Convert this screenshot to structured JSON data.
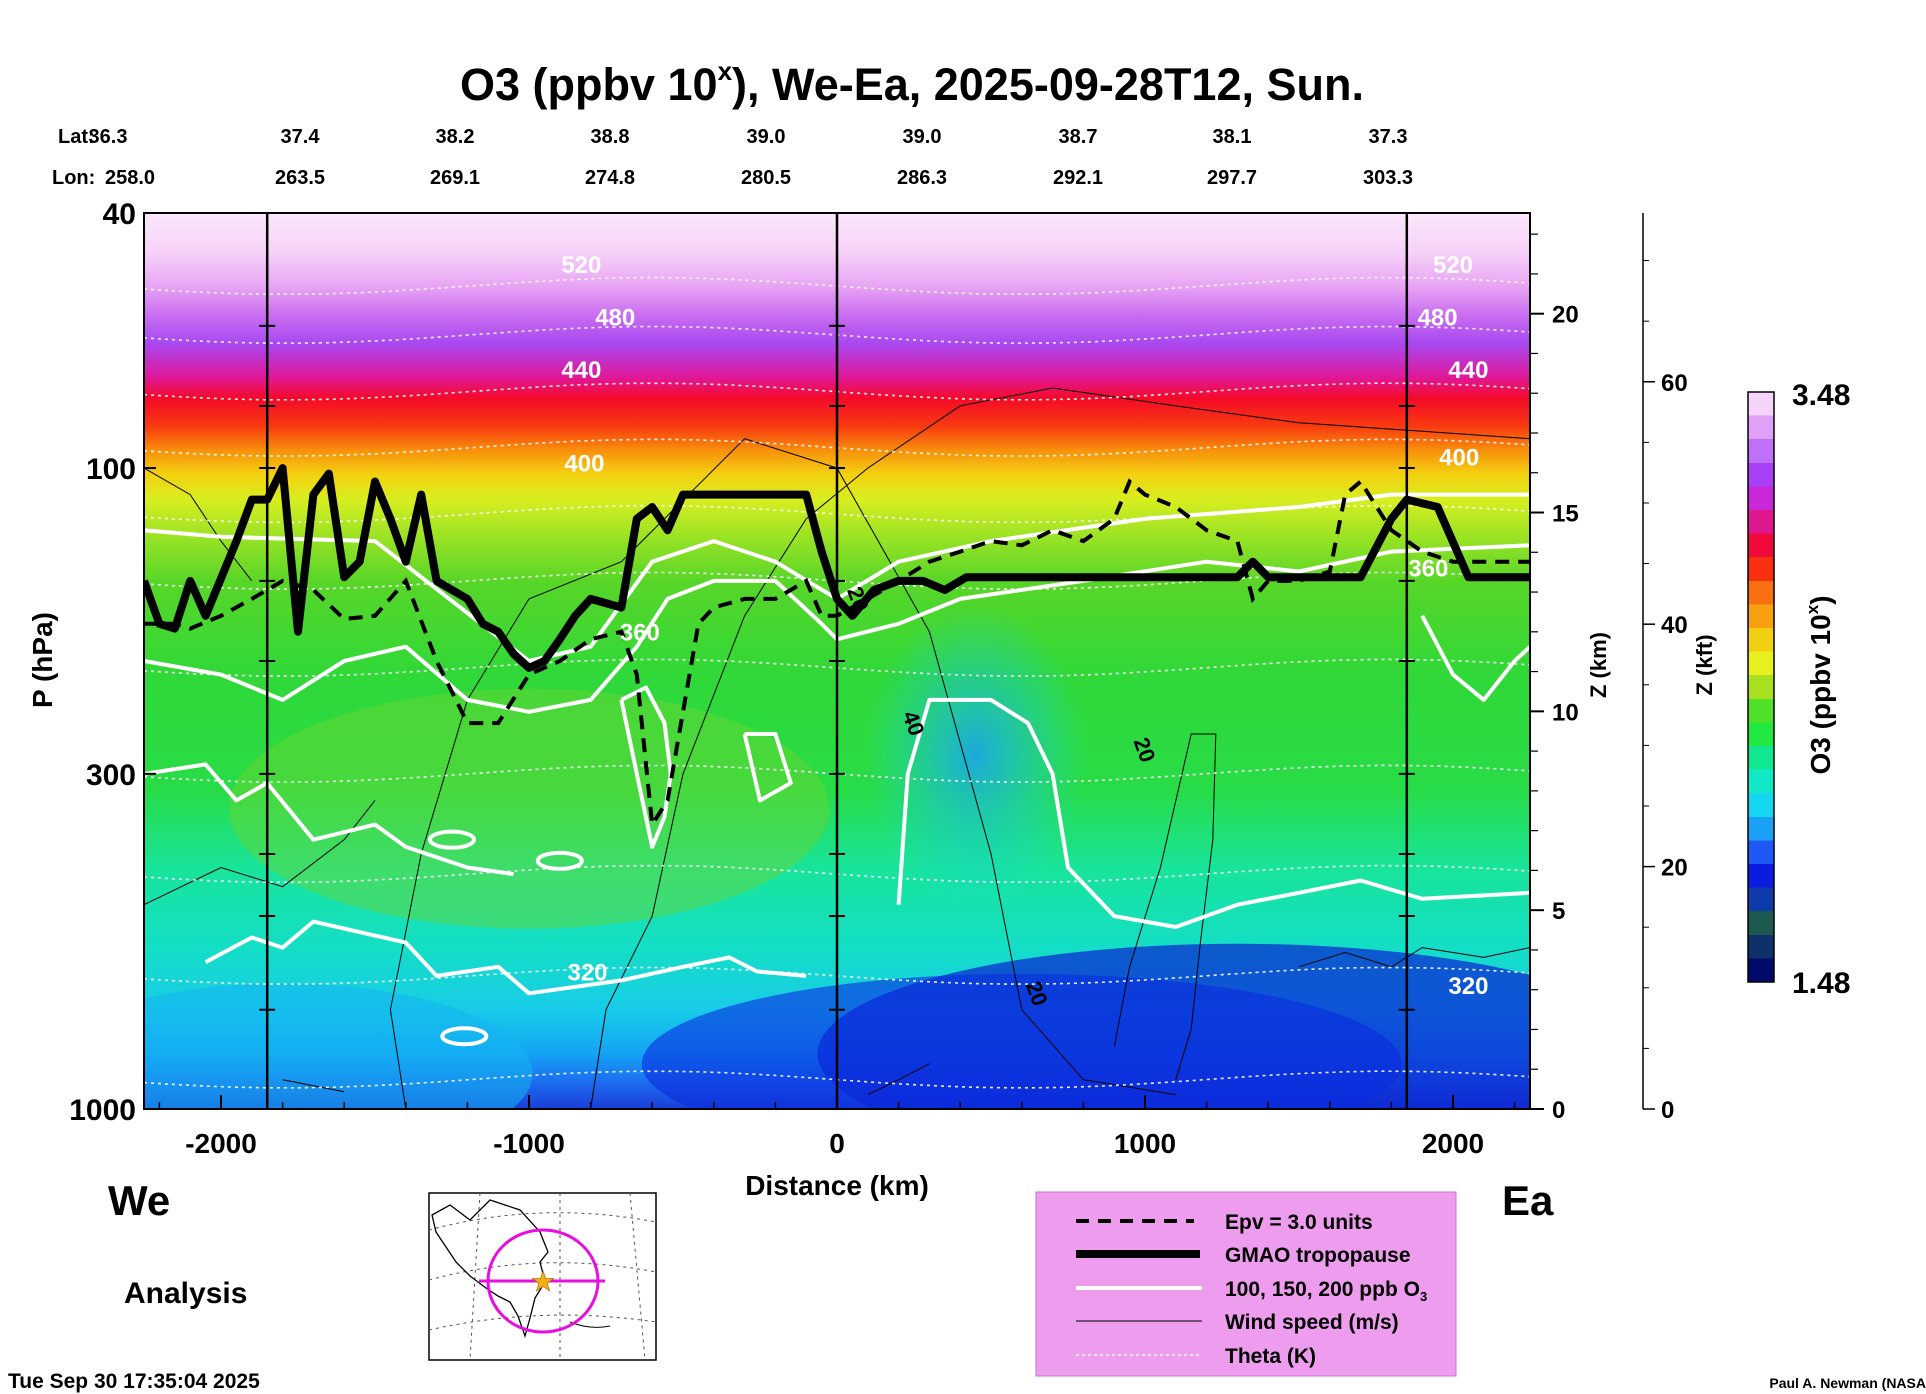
{
  "chart_data": {
    "type": "contour",
    "title": "O3 (ppbv 10",
    "title_sup": "x",
    "title_suffix": "), We-Ea, 2025-09-28T12, Sun.",
    "xlabel": "Distance (km)",
    "ylabel_left": "P (hPa)",
    "ylabel_right_km": "Z (km)",
    "ylabel_right_kft": "Z (kft)",
    "x_ticks": [
      -2000,
      -1000,
      0,
      1000,
      2000
    ],
    "xlim": [
      -2250,
      2250
    ],
    "p_ticks": [
      40,
      100,
      300,
      1000
    ],
    "p_range": [
      1000,
      40
    ],
    "z_km_ticks": [
      0,
      5,
      10,
      15,
      20
    ],
    "z_kft_ticks": [
      0,
      20,
      40,
      60
    ],
    "lat_label": "Lat:",
    "lon_label": "Lon:",
    "lats": [
      "36.3",
      "37.4",
      "38.2",
      "38.8",
      "39.0",
      "39.0",
      "38.7",
      "38.1",
      "37.3"
    ],
    "lons": [
      "258.0",
      "263.5",
      "269.1",
      "274.8",
      "280.5",
      "286.3",
      "292.1",
      "297.7",
      "303.3"
    ],
    "vertical_markers_km": [
      -1850,
      0,
      1850
    ],
    "theta_labels": [
      {
        "text": "520",
        "x": -830,
        "p": 48
      },
      {
        "text": "480",
        "x": -720,
        "p": 58
      },
      {
        "text": "440",
        "x": -830,
        "p": 70
      },
      {
        "text": "400",
        "x": -820,
        "p": 98
      },
      {
        "text": "360",
        "x": -640,
        "p": 180
      },
      {
        "text": "320",
        "x": -810,
        "p": 610
      },
      {
        "text": "520",
        "x": 2000,
        "p": 48
      },
      {
        "text": "480",
        "x": 1950,
        "p": 58
      },
      {
        "text": "440",
        "x": 2050,
        "p": 70
      },
      {
        "text": "400",
        "x": 2020,
        "p": 96
      },
      {
        "text": "360",
        "x": 1920,
        "p": 143
      },
      {
        "text": "320",
        "x": 2050,
        "p": 640
      }
    ],
    "wind_labels": [
      {
        "text": "40",
        "x": 250,
        "p": 250
      },
      {
        "text": "20",
        "x": 1000,
        "p": 275
      },
      {
        "text": "20",
        "x": 650,
        "p": 660
      },
      {
        "text": "20",
        "x": 70,
        "p": 160
      }
    ],
    "tropopause": [
      [
        -2250,
        150
      ],
      [
        -2200,
        175
      ],
      [
        -2150,
        178
      ],
      [
        -2100,
        150
      ],
      [
        -2050,
        170
      ],
      [
        -1950,
        130
      ],
      [
        -1900,
        112
      ],
      [
        -1850,
        112
      ],
      [
        -1800,
        100
      ],
      [
        -1750,
        180
      ],
      [
        -1700,
        110
      ],
      [
        -1650,
        102
      ],
      [
        -1600,
        148
      ],
      [
        -1550,
        140
      ],
      [
        -1500,
        105
      ],
      [
        -1450,
        120
      ],
      [
        -1400,
        140
      ],
      [
        -1350,
        110
      ],
      [
        -1300,
        150
      ],
      [
        -1200,
        160
      ],
      [
        -1150,
        175
      ],
      [
        -1100,
        180
      ],
      [
        -1050,
        195
      ],
      [
        -1000,
        205
      ],
      [
        -950,
        200
      ],
      [
        -900,
        185
      ],
      [
        -850,
        170
      ],
      [
        -800,
        160
      ],
      [
        -700,
        165
      ],
      [
        -650,
        120
      ],
      [
        -600,
        115
      ],
      [
        -550,
        125
      ],
      [
        -500,
        110
      ],
      [
        -300,
        110
      ],
      [
        -200,
        110
      ],
      [
        -100,
        110
      ],
      [
        -50,
        135
      ],
      [
        0,
        160
      ],
      [
        50,
        170
      ],
      [
        120,
        155
      ],
      [
        200,
        150
      ],
      [
        280,
        150
      ],
      [
        350,
        155
      ],
      [
        420,
        148
      ],
      [
        600,
        148
      ],
      [
        800,
        148
      ],
      [
        1000,
        148
      ],
      [
        1300,
        148
      ],
      [
        1350,
        140
      ],
      [
        1400,
        148
      ],
      [
        1500,
        148
      ],
      [
        1700,
        148
      ],
      [
        1800,
        120
      ],
      [
        1850,
        112
      ],
      [
        1950,
        115
      ],
      [
        2050,
        148
      ],
      [
        2250,
        148
      ]
    ],
    "epv_line": [
      [
        -2250,
        175
      ],
      [
        -2150,
        175
      ],
      [
        -2100,
        178
      ],
      [
        -2000,
        170
      ],
      [
        -1900,
        160
      ],
      [
        -1800,
        150
      ],
      [
        -1700,
        155
      ],
      [
        -1600,
        172
      ],
      [
        -1500,
        170
      ],
      [
        -1400,
        150
      ],
      [
        -1300,
        200
      ],
      [
        -1200,
        250
      ],
      [
        -1100,
        250
      ],
      [
        -1000,
        210
      ],
      [
        -900,
        200
      ],
      [
        -800,
        185
      ],
      [
        -700,
        180
      ],
      [
        -650,
        210
      ],
      [
        -600,
        360
      ],
      [
        -550,
        330
      ],
      [
        -500,
        240
      ],
      [
        -450,
        175
      ],
      [
        -400,
        165
      ],
      [
        -300,
        160
      ],
      [
        -200,
        160
      ],
      [
        -100,
        150
      ],
      [
        -50,
        170
      ],
      [
        0,
        170
      ],
      [
        100,
        160
      ],
      [
        200,
        150
      ],
      [
        300,
        140
      ],
      [
        400,
        135
      ],
      [
        500,
        130
      ],
      [
        600,
        132
      ],
      [
        700,
        125
      ],
      [
        800,
        130
      ],
      [
        900,
        120
      ],
      [
        950,
        105
      ],
      [
        1000,
        110
      ],
      [
        1100,
        115
      ],
      [
        1200,
        125
      ],
      [
        1300,
        130
      ],
      [
        1350,
        160
      ],
      [
        1400,
        150
      ],
      [
        1500,
        150
      ],
      [
        1600,
        145
      ],
      [
        1650,
        110
      ],
      [
        1700,
        105
      ],
      [
        1800,
        125
      ],
      [
        1900,
        135
      ],
      [
        2000,
        140
      ],
      [
        2100,
        140
      ],
      [
        2250,
        140
      ]
    ],
    "o3_colorbar": {
      "label": "O3 (ppbv 10",
      "label_sup": "x",
      "label_suffix": ")",
      "min": "1.48",
      "max": "3.48",
      "colors": [
        "#000a6b",
        "#10306a",
        "#1c5a4f",
        "#0e3aaa",
        "#0a1ce0",
        "#1e58f5",
        "#1aa0f5",
        "#14d6f0",
        "#10e8c8",
        "#10e890",
        "#20e840",
        "#50e028",
        "#a8e020",
        "#e8f020",
        "#f0d010",
        "#f8a010",
        "#f87010",
        "#f83010",
        "#f00a3c",
        "#e01890",
        "#c828d8",
        "#a840f8",
        "#c070f8",
        "#e0a0f8",
        "#f4d4f8"
      ]
    },
    "legend": {
      "items": [
        {
          "style": "dashed",
          "label": "Epv = 3.0 units"
        },
        {
          "style": "thick",
          "label": "GMAO tropopause"
        },
        {
          "style": "white",
          "label": "100, 150, 200 ppb O"
        },
        {
          "style": "thin",
          "label": "Wind speed (m/s)"
        },
        {
          "style": "dotted",
          "label": "Theta (K)"
        }
      ],
      "o3_subscript": "3"
    },
    "left_end_label": "We",
    "right_end_label": "Ea",
    "analysis_label": "Analysis",
    "timestamp": "Tue Sep 30 17:35:04 2025",
    "credit": "Paul A. Newman (NASA"
  }
}
